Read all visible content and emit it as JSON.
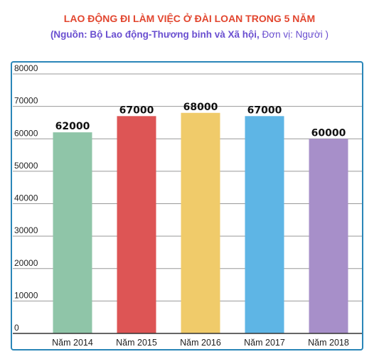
{
  "title": "LAO ĐỘNG ĐI LÀM VIỆC Ở ĐÀI LOAN TRONG 5 NĂM",
  "subtitle_source": "(Nguồn: Bộ Lao động-Thương binh và Xã hội,",
  "subtitle_unit": " Đơn vị: Người )",
  "chart_data": {
    "type": "bar",
    "categories": [
      "Năm 2014",
      "Năm 2015",
      "Năm 2016",
      "Năm 2017",
      "Năm 2018"
    ],
    "values": [
      62000,
      67000,
      68000,
      67000,
      60000
    ],
    "data_labels": [
      "62000",
      "67000",
      "68000",
      "67000",
      "60000"
    ],
    "bar_colors": [
      "#8fc5a8",
      "#dd5555",
      "#f0cb6a",
      "#5eb5e5",
      "#a78fc9"
    ],
    "ylim": [
      0,
      80000
    ],
    "yticks": [
      {
        "value": 0,
        "label": "0"
      },
      {
        "value": 10000,
        "label": "10000"
      },
      {
        "value": 20000,
        "label": "20000"
      },
      {
        "value": 30000,
        "label": "30000"
      },
      {
        "value": 40000,
        "label": "40000"
      },
      {
        "value": 50000,
        "label": "50000"
      },
      {
        "value": 60000,
        "label": "60000"
      },
      {
        "value": 70000,
        "label": "70000"
      },
      {
        "value": 80000,
        "label": "80000"
      }
    ],
    "grid": true,
    "legend": "none"
  }
}
